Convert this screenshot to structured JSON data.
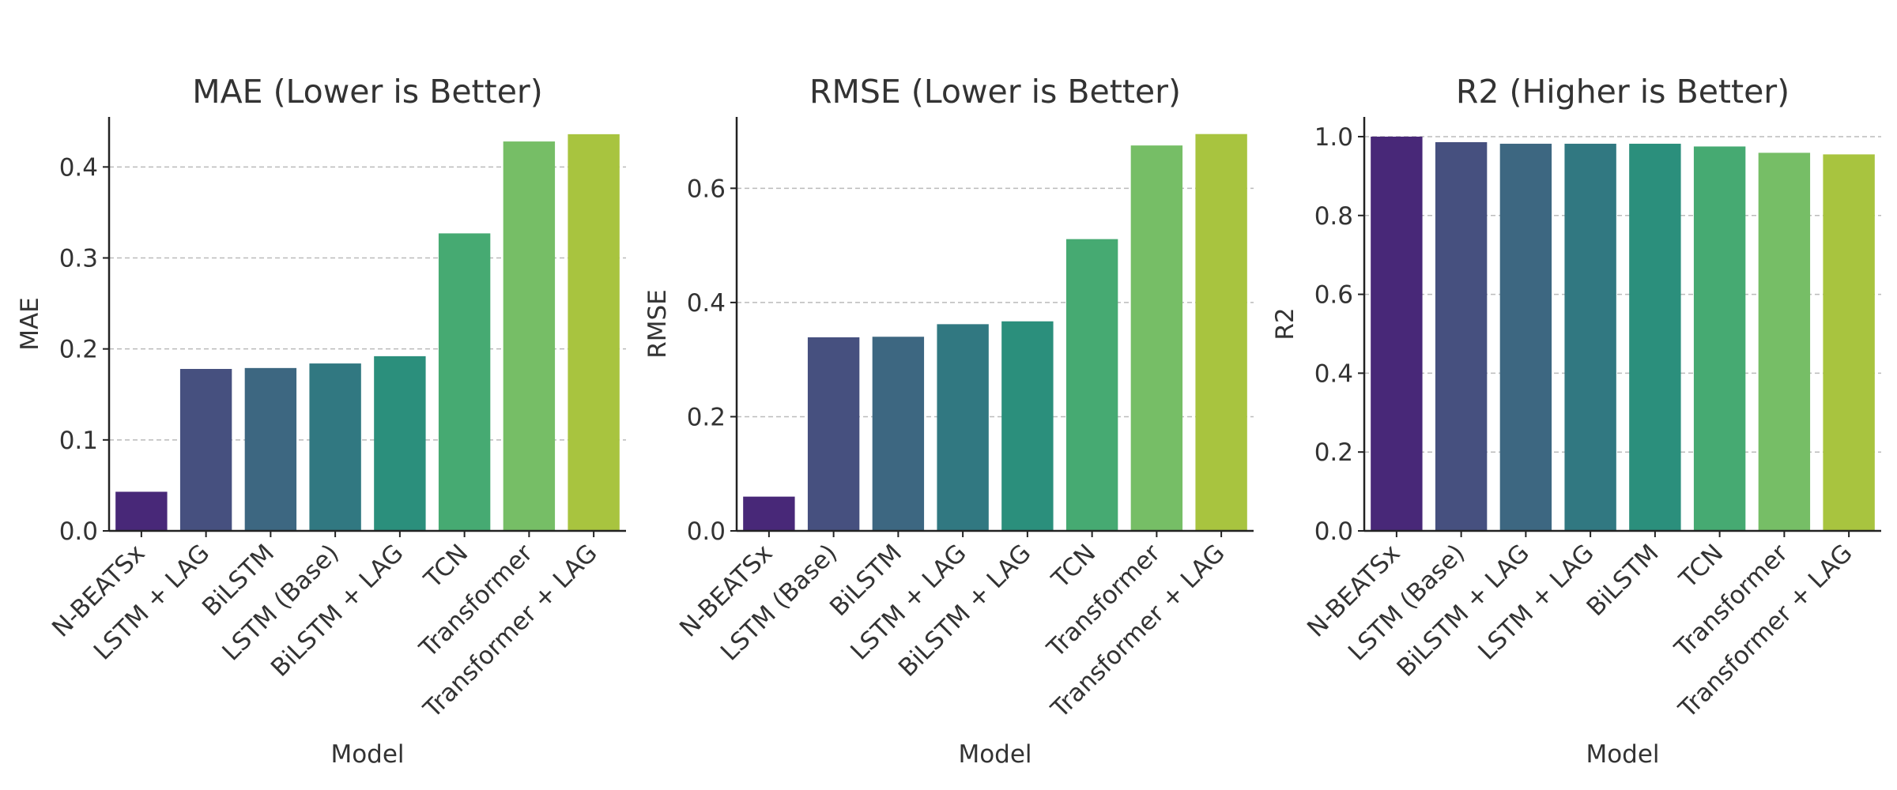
{
  "chart_data": [
    {
      "type": "bar",
      "title": "MAE (Lower is Better)",
      "xlabel": "Model",
      "ylabel": "MAE",
      "categories": [
        "N-BEATSx",
        "LSTM + LAG",
        "BiLSTM",
        "LSTM (Base)",
        "BiLSTM + LAG",
        "TCN",
        "Transformer",
        "Transformer + LAG"
      ],
      "values": [
        0.043,
        0.178,
        0.179,
        0.184,
        0.192,
        0.327,
        0.428,
        0.436
      ],
      "ylim": [
        0,
        0.455
      ],
      "yticks": [
        0.0,
        0.1,
        0.2,
        0.3,
        0.4
      ],
      "ytick_labels": [
        "0.0",
        "0.1",
        "0.2",
        "0.3",
        "0.4"
      ],
      "colors": [
        "#482878",
        "#46507f",
        "#3d6781",
        "#317881",
        "#2b8f7c",
        "#46aa72",
        "#76be66",
        "#a8c43f"
      ],
      "grid": "y, dashed"
    },
    {
      "type": "bar",
      "title": "RMSE (Lower is Better)",
      "xlabel": "Model",
      "ylabel": "RMSE",
      "categories": [
        "N-BEATSx",
        "LSTM (Base)",
        "BiLSTM",
        "LSTM + LAG",
        "BiLSTM + LAG",
        "TCN",
        "Transformer",
        "Transformer + LAG"
      ],
      "values": [
        0.06,
        0.339,
        0.34,
        0.362,
        0.367,
        0.511,
        0.675,
        0.695
      ],
      "ylim": [
        0,
        0.725
      ],
      "yticks": [
        0.0,
        0.2,
        0.4,
        0.6
      ],
      "ytick_labels": [
        "0.0",
        "0.2",
        "0.4",
        "0.6"
      ],
      "colors": [
        "#482878",
        "#46507f",
        "#3d6781",
        "#317881",
        "#2b8f7c",
        "#46aa72",
        "#76be66",
        "#a8c43f"
      ],
      "grid": "y, dashed"
    },
    {
      "type": "bar",
      "title": "R2 (Higher is Better)",
      "xlabel": "Model",
      "ylabel": "R2",
      "categories": [
        "N-BEATSx",
        "LSTM (Base)",
        "BiLSTM + LAG",
        "LSTM + LAG",
        "BiLSTM",
        "TCN",
        "Transformer",
        "Transformer + LAG"
      ],
      "values": [
        1.0,
        0.986,
        0.982,
        0.982,
        0.982,
        0.975,
        0.959,
        0.955
      ],
      "ylim": [
        0,
        1.05
      ],
      "yticks": [
        0.0,
        0.2,
        0.4,
        0.6,
        0.8,
        1.0
      ],
      "ytick_labels": [
        "0.0",
        "0.2",
        "0.4",
        "0.6",
        "0.8",
        "1.0"
      ],
      "colors": [
        "#482878",
        "#46507f",
        "#3d6781",
        "#317881",
        "#2b8f7c",
        "#46aa72",
        "#76be66",
        "#a8c43f"
      ],
      "grid": "y, dashed"
    }
  ]
}
